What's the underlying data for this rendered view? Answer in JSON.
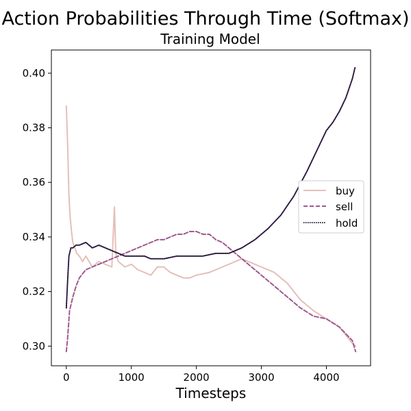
{
  "figure": {
    "title": "Action Probabilities Through Time (Softmax)",
    "subtitle": "Training Model"
  },
  "chart_data": {
    "type": "line",
    "title": "Action Probabilities Through Time (Softmax)",
    "subtitle": "Training Model",
    "xlabel": "Timesteps",
    "ylabel": "",
    "xlim": [
      -230,
      4680
    ],
    "ylim": [
      0.2928,
      0.4085
    ],
    "xticks": [
      0,
      1000,
      2000,
      3000,
      4000
    ],
    "yticks": [
      0.3,
      0.32,
      0.34,
      0.36,
      0.38,
      0.4
    ],
    "xtick_labels": [
      "0",
      "1000",
      "2000",
      "3000",
      "4000"
    ],
    "ytick_labels": [
      "0.30",
      "0.32",
      "0.34",
      "0.36",
      "0.38",
      "0.40"
    ],
    "grid": false,
    "legend_position": "center-right",
    "series": [
      {
        "name": "buy",
        "color": "#e4bfb9",
        "dash": "solid",
        "x": [
          0,
          20,
          40,
          60,
          80,
          100,
          130,
          160,
          200,
          250,
          300,
          400,
          500,
          600,
          700,
          740,
          760,
          800,
          900,
          1000,
          1100,
          1200,
          1300,
          1400,
          1500,
          1600,
          1700,
          1800,
          1900,
          2000,
          2200,
          2400,
          2600,
          2700,
          2800,
          2900,
          3000,
          3200,
          3400,
          3600,
          3800,
          4000,
          4200,
          4400,
          4450
        ],
        "y": [
          0.388,
          0.374,
          0.355,
          0.347,
          0.342,
          0.338,
          0.336,
          0.334,
          0.333,
          0.331,
          0.333,
          0.329,
          0.331,
          0.33,
          0.329,
          0.351,
          0.334,
          0.331,
          0.329,
          0.33,
          0.328,
          0.327,
          0.326,
          0.329,
          0.329,
          0.327,
          0.326,
          0.325,
          0.325,
          0.326,
          0.327,
          0.329,
          0.331,
          0.332,
          0.331,
          0.33,
          0.329,
          0.327,
          0.323,
          0.317,
          0.313,
          0.31,
          0.307,
          0.301,
          0.3
        ]
      },
      {
        "name": "sell",
        "color": "#a0588f",
        "dash": "dashed",
        "x": [
          0,
          20,
          50,
          100,
          150,
          200,
          300,
          400,
          500,
          600,
          700,
          800,
          900,
          1000,
          1100,
          1200,
          1300,
          1400,
          1500,
          1600,
          1700,
          1800,
          1900,
          2000,
          2100,
          2200,
          2300,
          2400,
          2500,
          2600,
          2700,
          2800,
          2900,
          3000,
          3200,
          3400,
          3600,
          3800,
          4000,
          4200,
          4400,
          4450
        ],
        "y": [
          0.298,
          0.303,
          0.313,
          0.318,
          0.322,
          0.325,
          0.328,
          0.329,
          0.33,
          0.331,
          0.332,
          0.333,
          0.334,
          0.335,
          0.336,
          0.337,
          0.338,
          0.339,
          0.339,
          0.34,
          0.341,
          0.341,
          0.342,
          0.342,
          0.341,
          0.341,
          0.339,
          0.338,
          0.336,
          0.334,
          0.332,
          0.33,
          0.328,
          0.326,
          0.322,
          0.318,
          0.314,
          0.311,
          0.31,
          0.307,
          0.302,
          0.298
        ]
      },
      {
        "name": "hold",
        "color": "#2b1a3f",
        "dash": "dotted",
        "x": [
          0,
          20,
          40,
          70,
          100,
          150,
          200,
          300,
          400,
          500,
          600,
          700,
          800,
          900,
          1000,
          1100,
          1200,
          1300,
          1400,
          1500,
          1700,
          1900,
          2100,
          2300,
          2500,
          2700,
          2900,
          3100,
          3300,
          3500,
          3700,
          3800,
          3900,
          4000,
          4100,
          4200,
          4300,
          4400,
          4440
        ],
        "y": [
          0.314,
          0.324,
          0.333,
          0.336,
          0.336,
          0.337,
          0.337,
          0.338,
          0.336,
          0.337,
          0.336,
          0.335,
          0.334,
          0.333,
          0.333,
          0.333,
          0.333,
          0.332,
          0.332,
          0.332,
          0.333,
          0.333,
          0.333,
          0.334,
          0.334,
          0.336,
          0.339,
          0.343,
          0.348,
          0.355,
          0.364,
          0.369,
          0.374,
          0.379,
          0.382,
          0.386,
          0.391,
          0.398,
          0.402
        ]
      }
    ]
  }
}
